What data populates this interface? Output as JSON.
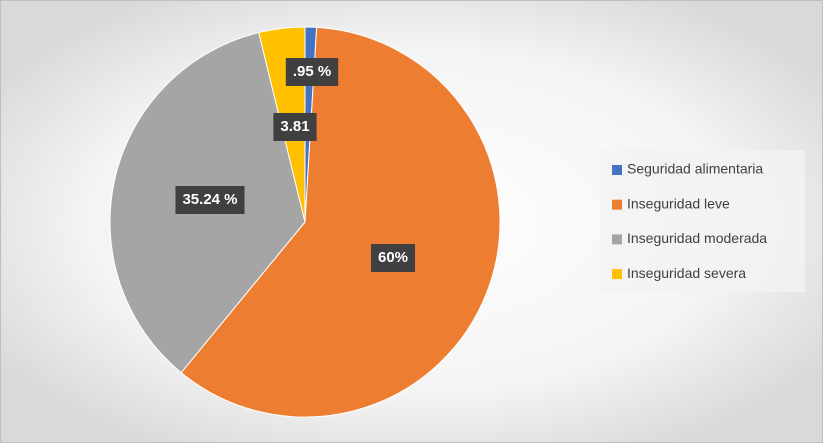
{
  "chart_data": {
    "type": "pie",
    "categories": [
      "Seguridad alimentaria",
      "Inseguridad leve",
      "Inseguridad moderada",
      "Inseguridad severa"
    ],
    "values": [
      0.95,
      60,
      35.24,
      3.81
    ],
    "value_labels": [
      ".95 %",
      "60%",
      "35.24 %",
      "3.81"
    ],
    "colors": [
      "#4472c4",
      "#ed7d31",
      "#a5a5a5",
      "#ffc000"
    ],
    "legend": "right"
  }
}
